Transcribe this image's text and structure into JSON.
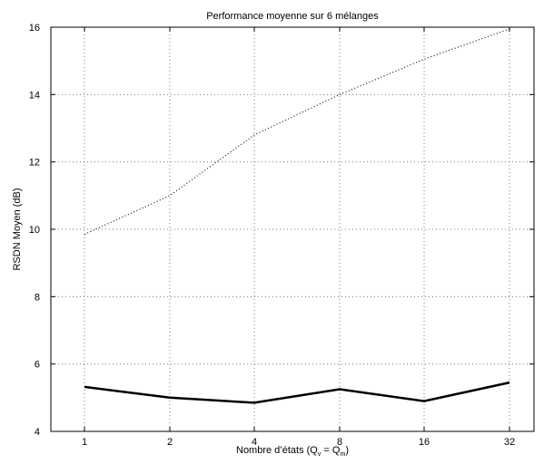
{
  "chart_data": {
    "type": "line",
    "title": "Performance moyenne sur 6 mélanges",
    "xlabel": {
      "prefix": "Nombre d’états (Q",
      "sub1": "v",
      "middle": " = Q",
      "sub2": "m",
      "suffix": ")"
    },
    "ylabel": "RSDN Moyen (dB)",
    "categories": [
      "1",
      "2",
      "4",
      "8",
      "16",
      "32"
    ],
    "ylim": [
      4,
      16
    ],
    "yticks": [
      4,
      6,
      8,
      10,
      12,
      14,
      16
    ],
    "grid": true,
    "series": [
      {
        "style": "solid",
        "color": "#000000",
        "values": [
          5.32,
          5.0,
          4.85,
          5.25,
          4.9,
          5.45
        ]
      },
      {
        "style": "dotted",
        "color": "#000000",
        "values": [
          9.85,
          11.0,
          12.8,
          14.0,
          15.05,
          15.95
        ]
      }
    ]
  }
}
